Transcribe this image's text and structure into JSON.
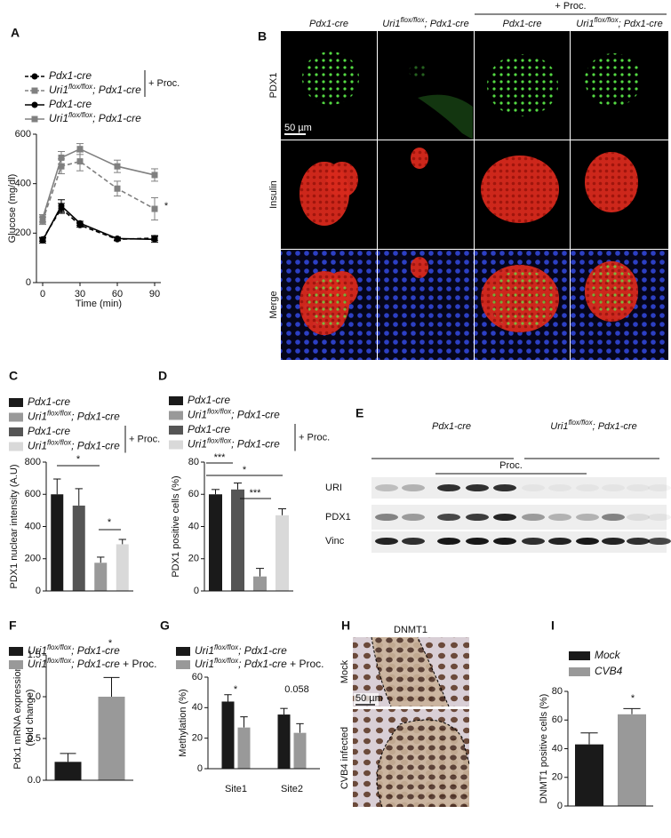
{
  "panel_labels": [
    "A",
    "B",
    "C",
    "D",
    "E",
    "F",
    "G",
    "H",
    "I"
  ],
  "chart_data": [
    {
      "type": "line",
      "xlabel": "Time (min)",
      "ylabel": "Glucose (mg/dl)",
      "x": [
        0,
        15,
        30,
        60,
        90
      ],
      "xlim": [
        -5,
        95
      ],
      "xticks": [
        0,
        30,
        60,
        90
      ],
      "ylim": [
        0,
        600
      ],
      "yticks": [
        0,
        200,
        400,
        600
      ],
      "group_label": "+ Proc.",
      "annotations": [
        "*"
      ],
      "series": [
        {
          "name": "Pdx1-cre",
          "color": "#000000",
          "dash": true,
          "marker": "circle",
          "values": [
            175,
            300,
            232,
            175,
            180
          ],
          "errors": [
            8,
            20,
            8,
            6,
            10
          ]
        },
        {
          "name": "Uri1flox/flox; Pdx1-cre",
          "color": "#808080",
          "dash": true,
          "marker": "square",
          "values": [
            250,
            470,
            490,
            380,
            298
          ],
          "errors": [
            15,
            30,
            38,
            30,
            45
          ]
        },
        {
          "name": "Pdx1-cre",
          "color": "#000000",
          "dash": false,
          "marker": "circle",
          "values": [
            170,
            310,
            240,
            178,
            175
          ],
          "errors": [
            10,
            25,
            8,
            6,
            12
          ]
        },
        {
          "name": "Uri1flox/flox; Pdx1-cre",
          "color": "#808080",
          "dash": false,
          "marker": "square",
          "values": [
            260,
            505,
            540,
            470,
            435
          ],
          "errors": [
            15,
            25,
            22,
            25,
            25
          ]
        }
      ]
    },
    {
      "type": "bar",
      "ylabel": "PDX1 nuclear intensity (A.U)",
      "categories": [
        null,
        null,
        null,
        null
      ],
      "ylim": [
        0,
        800
      ],
      "yticks": [
        0,
        200,
        400,
        600,
        800
      ],
      "group_label": "+ Proc.",
      "annotations": [
        "*",
        "*"
      ],
      "series": [
        {
          "name": "Pdx1-cre",
          "color": "#1a1a1a",
          "values": [
            600,
            null,
            null,
            null
          ],
          "errors": [
            95,
            null,
            null,
            null
          ]
        },
        {
          "name": "Uri1flox/flox; Pdx1-cre",
          "color": "#999999",
          "values": [
            null,
            null,
            175,
            null
          ],
          "errors": [
            null,
            null,
            35,
            null
          ]
        },
        {
          "name": "Pdx1-cre",
          "color": "#555555",
          "values": [
            null,
            530,
            null,
            null
          ],
          "errors": [
            null,
            105,
            null,
            null
          ]
        },
        {
          "name": "Uri1flox/flox; Pdx1-cre",
          "color": "#d9d9d9",
          "values": [
            null,
            null,
            null,
            290
          ],
          "errors": [
            null,
            null,
            null,
            30
          ]
        }
      ]
    },
    {
      "type": "bar",
      "ylabel": "PDX1 positive cells (%)",
      "categories": [
        null,
        null,
        null,
        null
      ],
      "ylim": [
        0,
        80
      ],
      "yticks": [
        0,
        20,
        40,
        60,
        80
      ],
      "group_label": "+ Proc.",
      "annotations": [
        "***",
        "*",
        "***"
      ],
      "series": [
        {
          "name": "Pdx1-cre",
          "color": "#1a1a1a",
          "values": [
            60,
            null,
            null,
            null
          ],
          "errors": [
            3,
            null,
            null,
            null
          ]
        },
        {
          "name": "Uri1flox/flox; Pdx1-cre",
          "color": "#999999",
          "values": [
            null,
            null,
            9,
            null
          ],
          "errors": [
            null,
            null,
            5,
            null
          ]
        },
        {
          "name": "Pdx1-cre",
          "color": "#555555",
          "values": [
            null,
            63,
            null,
            null
          ],
          "errors": [
            null,
            4,
            null,
            null
          ]
        },
        {
          "name": "Uri1flox/flox; Pdx1-cre",
          "color": "#d9d9d9",
          "values": [
            null,
            null,
            null,
            47
          ],
          "errors": [
            null,
            null,
            null,
            4
          ]
        }
      ]
    },
    {
      "type": "bar",
      "ylabel": [
        "Pdx1 mRNA expression",
        "(fold change)"
      ],
      "categories": [
        null,
        null
      ],
      "ylim": [
        0,
        1.5
      ],
      "yticks": [
        {
          "value": 0,
          "label": "0.0"
        },
        0.5,
        {
          "value": 1,
          "label": "1.0"
        },
        1.5
      ],
      "annotations": [
        "*"
      ],
      "series": [
        {
          "name": "Uri1flox/flox; Pdx1-cre",
          "color": "#1a1a1a",
          "values": [
            0.22,
            null
          ],
          "errors": [
            0.1,
            null
          ]
        },
        {
          "name": "Uri1flox/flox; Pdx1-cre + Proc.",
          "color": "#999999",
          "values": [
            null,
            1.0
          ],
          "errors": [
            null,
            0.23
          ]
        }
      ]
    },
    {
      "type": "bar",
      "ylabel": "Methylation (%)",
      "categories": [
        "Site1",
        "Site2"
      ],
      "ylim": [
        0,
        60
      ],
      "yticks": [
        0,
        20,
        40,
        60
      ],
      "annotations": [
        "*",
        "0.058"
      ],
      "series": [
        {
          "name": "Uri1flox/flox; Pdx1-cre",
          "color": "#1a1a1a",
          "values": [
            44,
            35.5
          ],
          "errors": [
            4.5,
            4
          ]
        },
        {
          "name": "Uri1flox/flox; Pdx1-cre + Proc.",
          "color": "#999999",
          "values": [
            27,
            23.5
          ],
          "errors": [
            7,
            6
          ]
        }
      ]
    },
    {
      "type": "bar",
      "ylabel": "DNMT1 positive cells (%)",
      "categories": [
        null,
        null
      ],
      "ylim": [
        0,
        80
      ],
      "yticks": [
        0,
        20,
        40,
        60,
        80
      ],
      "annotations": [
        "*"
      ],
      "series": [
        {
          "name": "Mock",
          "color": "#1a1a1a",
          "values": [
            43,
            null
          ],
          "errors": [
            8,
            null
          ]
        },
        {
          "name": "CVB4",
          "color": "#999999",
          "values": [
            null,
            64
          ],
          "errors": [
            null,
            4
          ]
        }
      ]
    }
  ],
  "panel_b": {
    "columns": [
      "Pdx1-cre",
      "Uri1flox/flox; Pdx1-cre",
      "Pdx1-cre",
      "Uri1flox/flox; Pdx1-cre"
    ],
    "treatment": "+ Proc.",
    "rows": [
      "PDX1",
      "Insulin",
      "Merge"
    ],
    "scale_bar": "50 µm"
  },
  "panel_e": {
    "groups": [
      "Pdx1-cre",
      "Uri1flox/flox; Pdx1-cre"
    ],
    "treatment": "Proc.",
    "rows": [
      "URI",
      "PDX1",
      "Vinc"
    ]
  },
  "panel_h": {
    "title": "DNMT1",
    "rows": [
      "Mock",
      "CVB4 infected"
    ],
    "scale_bar": "50 µm"
  }
}
